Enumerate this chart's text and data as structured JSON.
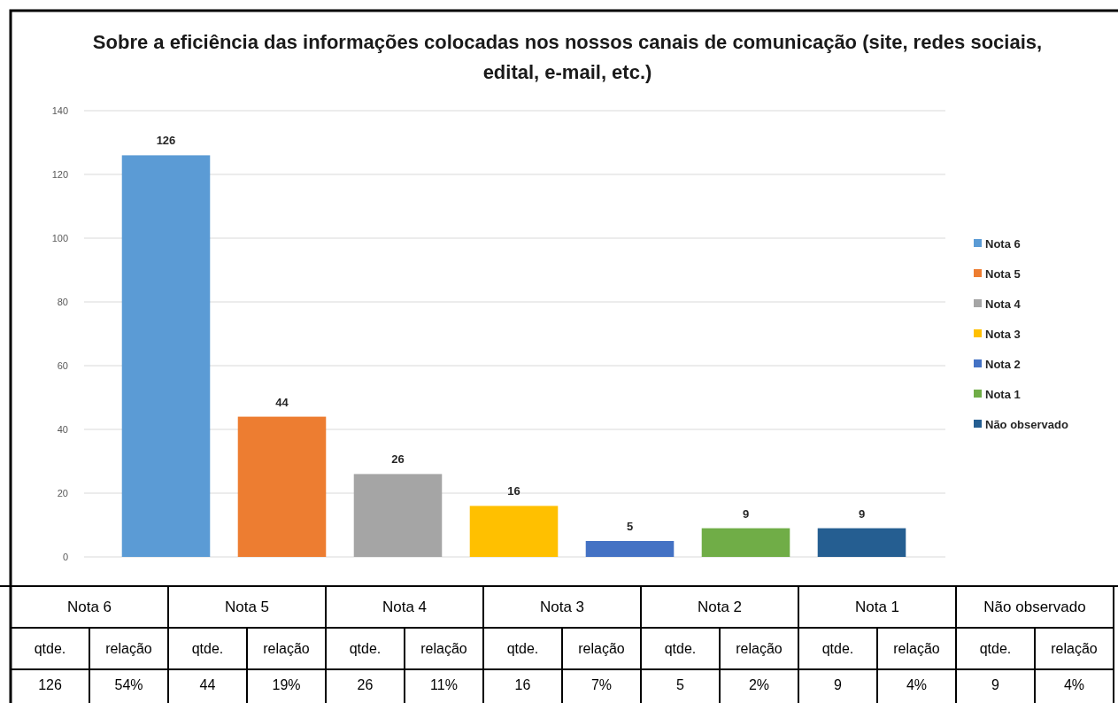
{
  "chart_data": {
    "type": "bar",
    "title": "Sobre a eficiência das informações colocadas nos nossos canais de comunicação (site, redes sociais, edital, e-mail, etc.)",
    "categories": [
      null,
      null,
      null,
      null,
      null,
      null,
      null
    ],
    "series": [
      {
        "name": "Nota 6",
        "color": "#5b9bd5",
        "values": [
          126,
          null,
          null,
          null,
          null,
          null,
          null
        ]
      },
      {
        "name": "Nota 5",
        "color": "#ed7d31",
        "values": [
          null,
          44,
          null,
          null,
          null,
          null,
          null
        ]
      },
      {
        "name": "Nota 4",
        "color": "#a5a5a5",
        "values": [
          null,
          null,
          26,
          null,
          null,
          null,
          null
        ]
      },
      {
        "name": "Nota 3",
        "color": "#ffc000",
        "values": [
          null,
          null,
          null,
          16,
          null,
          null,
          null
        ]
      },
      {
        "name": "Nota 2",
        "color": "#4472c4",
        "values": [
          null,
          null,
          null,
          null,
          5,
          null,
          null
        ]
      },
      {
        "name": "Nota 1",
        "color": "#70ad47",
        "values": [
          null,
          null,
          null,
          null,
          null,
          9,
          null
        ]
      },
      {
        "name": "Não observado",
        "color": "#255e91",
        "values": [
          null,
          null,
          null,
          null,
          null,
          null,
          9
        ]
      }
    ],
    "ylim": [
      0,
      140
    ],
    "yticks": [
      0,
      20,
      40,
      60,
      80,
      100,
      120,
      140
    ],
    "grid": "y",
    "legend": "right",
    "data_labels": true,
    "tick_labels": "y",
    "annotations": [
      "qtde.",
      "relação",
      "126",
      "54%",
      "44",
      "19%",
      "26",
      "11%",
      "16",
      "7%",
      "5",
      "2%",
      "9",
      "4%",
      "9",
      "4%"
    ]
  }
}
